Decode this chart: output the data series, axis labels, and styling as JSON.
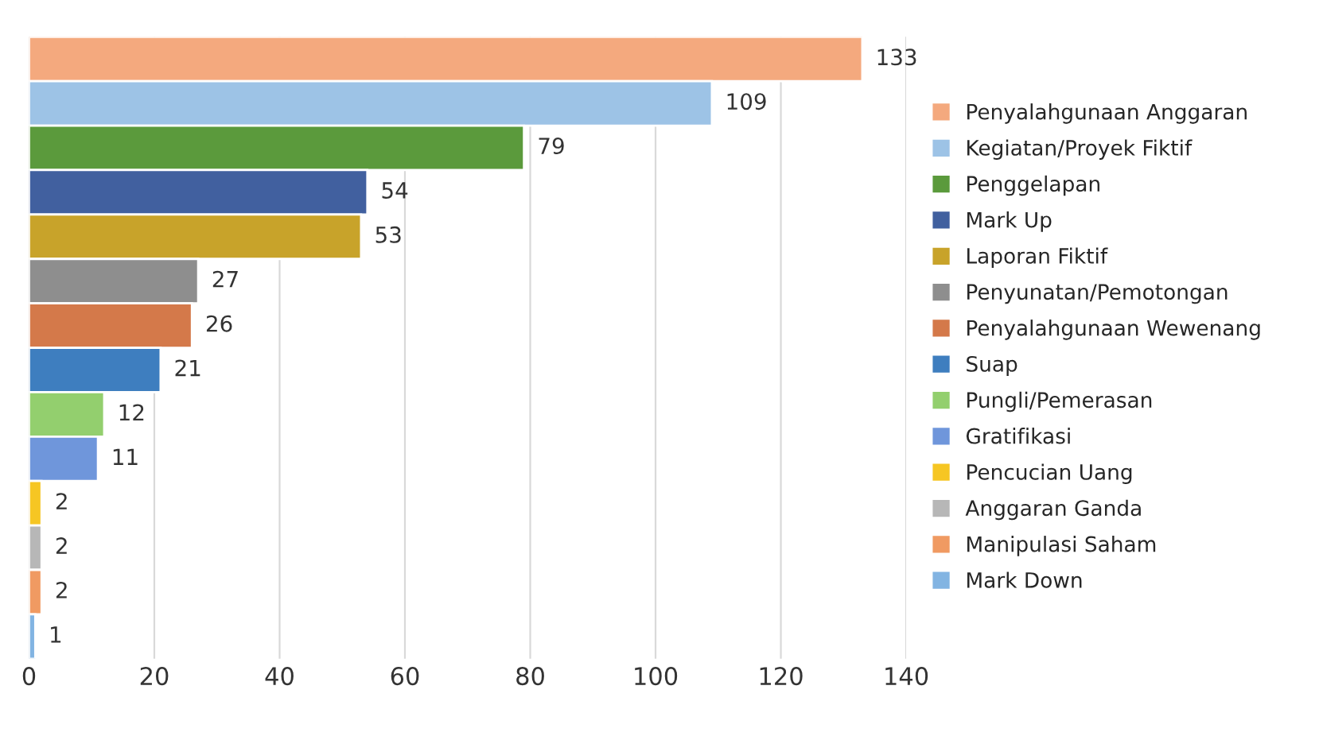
{
  "chart_data": {
    "type": "bar",
    "orientation": "horizontal",
    "categories": [
      null
    ],
    "series": [
      {
        "name": "Penyalahgunaan Anggaran",
        "color": "#f4a97e",
        "values": [
          133
        ]
      },
      {
        "name": "Kegiatan/Proyek Fiktif",
        "color": "#9dc3e6",
        "values": [
          109
        ]
      },
      {
        "name": "Penggelapan",
        "color": "#5b9a3c",
        "values": [
          79
        ]
      },
      {
        "name": "Mark Up",
        "color": "#41609f",
        "values": [
          54
        ]
      },
      {
        "name": "Laporan Fiktif",
        "color": "#c8a32a",
        "values": [
          53
        ]
      },
      {
        "name": "Penyunatan/Pemotongan",
        "color": "#8e8e8e",
        "values": [
          27
        ]
      },
      {
        "name": "Penyalahgunaan Wewenang",
        "color": "#d4794a",
        "values": [
          26
        ]
      },
      {
        "name": "Suap",
        "color": "#3e7ebf",
        "values": [
          21
        ]
      },
      {
        "name": "Pungli/Pemerasan",
        "color": "#93cf6e",
        "values": [
          12
        ]
      },
      {
        "name": "Gratifikasi",
        "color": "#6f96db",
        "values": [
          11
        ]
      },
      {
        "name": "Pencucian Uang",
        "color": "#f6c623",
        "values": [
          2
        ]
      },
      {
        "name": "Anggaran Ganda",
        "color": "#b7b7b7",
        "values": [
          2
        ]
      },
      {
        "name": "Manipulasi Saham",
        "color": "#f09a62",
        "values": [
          2
        ]
      },
      {
        "name": "Mark Down",
        "color": "#82b4e2",
        "values": [
          1
        ]
      }
    ],
    "xlim": [
      0,
      140
    ],
    "xticks": [
      0,
      20,
      40,
      60,
      80,
      100,
      120,
      140
    ],
    "data_labels": true,
    "grid": "x",
    "legend": "right",
    "tick_labels": "x"
  }
}
